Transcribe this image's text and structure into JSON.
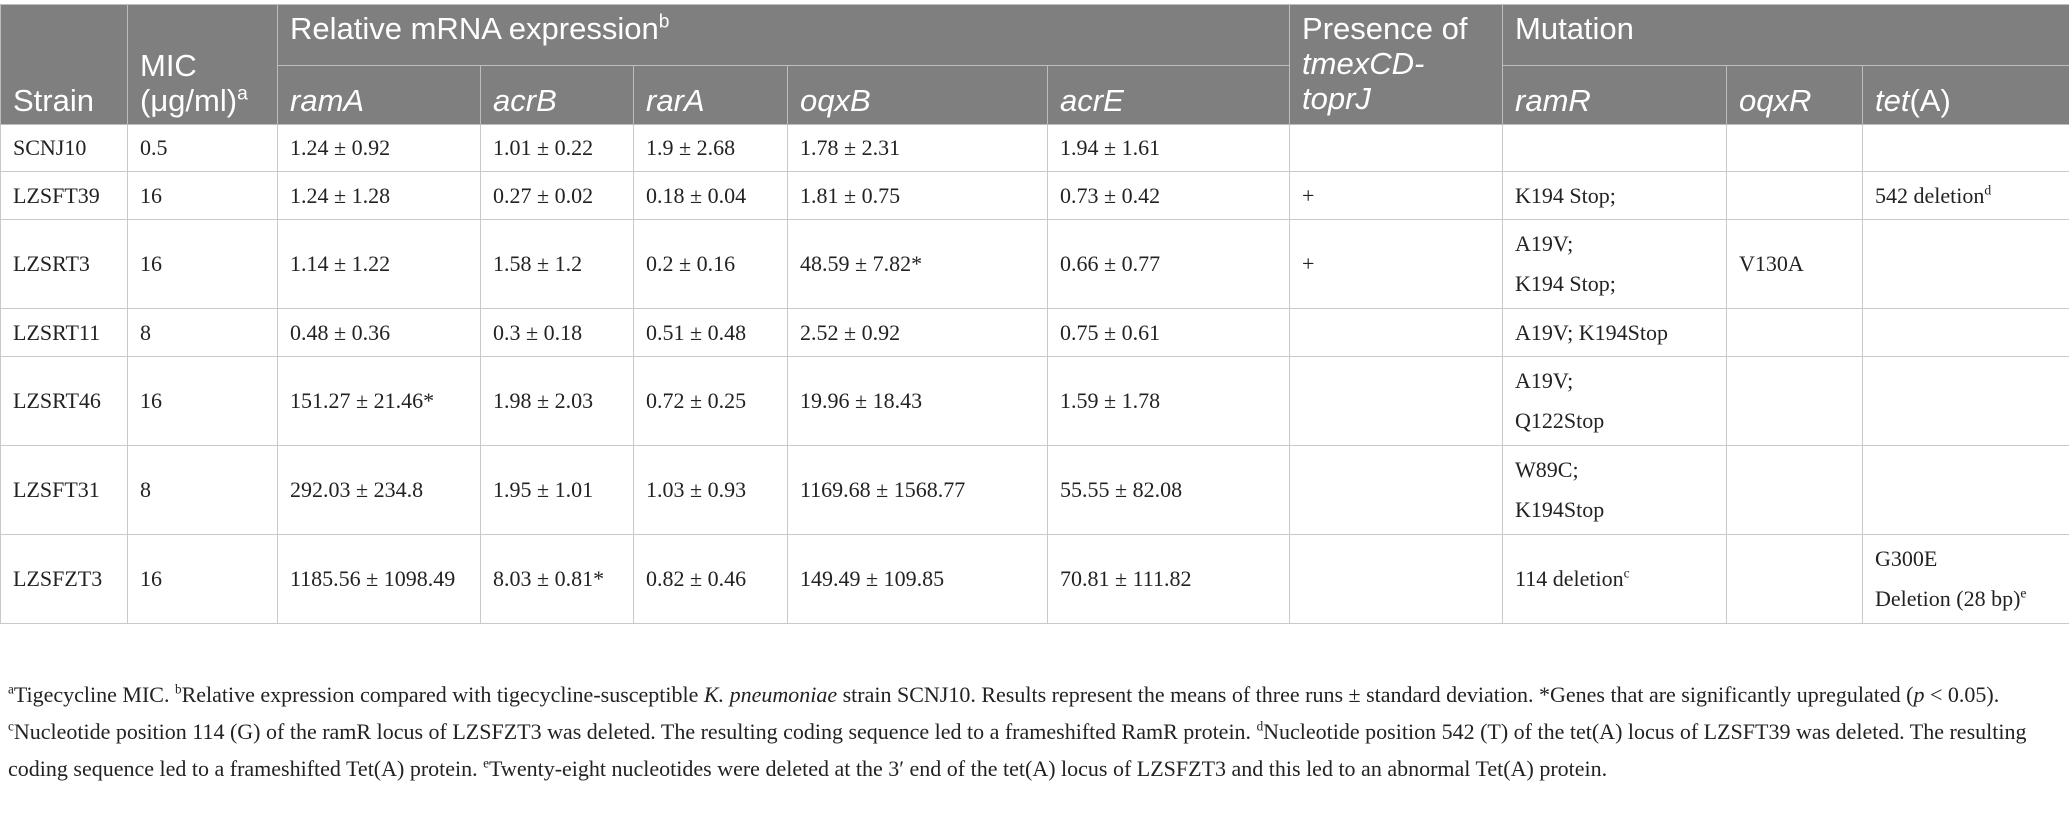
{
  "headers": {
    "strain": "Strain",
    "mic_line1": "MIC",
    "mic_line2": "(μg/ml)",
    "mic_sup": "a",
    "relative_group": "Relative mRNA expression",
    "relative_sup": "b",
    "ramA": "ramA",
    "acrB": "acrB",
    "rarA": "rarA",
    "oqxB": "oqxB",
    "acrE": "acrE",
    "presence_line1": "Presence of",
    "presence_line2": "tmexCD-",
    "presence_line3": "toprJ",
    "mutation_group": "Mutation",
    "ramR": "ramR",
    "oqxR": "oqxR",
    "tetA_italic": "tet",
    "tetA_plain": "(A)"
  },
  "rows": [
    {
      "strain": "SCNJ10",
      "mic": "0.5",
      "ramA": "1.24 ± 0.92",
      "acrB": "1.01 ± 0.22",
      "rarA": "1.9 ± 2.68",
      "oqxB": "1.78 ± 2.31",
      "acrE": "1.94 ± 1.61",
      "presence": "",
      "ramR1": "",
      "ramR2": "",
      "oqxR": "",
      "tetA1": "",
      "tetA2": ""
    },
    {
      "strain": "LZSFT39",
      "mic": "16",
      "ramA": "1.24 ± 1.28",
      "acrB": "0.27 ± 0.02",
      "rarA": "0.18 ± 0.04",
      "oqxB": "1.81 ± 0.75",
      "acrE": "0.73 ± 0.42",
      "presence": "+",
      "ramR1": "K194 Stop;",
      "ramR2": "",
      "oqxR": "",
      "tetA1": "542 deletion",
      "tetA1_sup": "d",
      "tetA2": ""
    },
    {
      "strain": "LZSRT3",
      "mic": "16",
      "ramA": "1.14 ± 1.22",
      "acrB": "1.58 ± 1.2",
      "rarA": "0.2 ± 0.16",
      "oqxB": "48.59 ± 7.82*",
      "acrE": "0.66 ± 0.77",
      "presence": "+",
      "ramR1": "A19V;",
      "ramR2": "K194 Stop;",
      "oqxR": "V130A",
      "tetA1": "",
      "tetA2": ""
    },
    {
      "strain": "LZSRT11",
      "mic": "8",
      "ramA": "0.48 ± 0.36",
      "acrB": "0.3 ± 0.18",
      "rarA": "0.51 ± 0.48",
      "oqxB": "2.52 ± 0.92",
      "acrE": "0.75 ± 0.61",
      "presence": "",
      "ramR1": "A19V; K194Stop",
      "ramR2": "",
      "oqxR": "",
      "tetA1": "",
      "tetA2": ""
    },
    {
      "strain": "LZSRT46",
      "mic": "16",
      "ramA": "151.27 ± 21.46*",
      "acrB": "1.98 ± 2.03",
      "rarA": "0.72 ± 0.25",
      "oqxB": "19.96 ± 18.43",
      "acrE": "1.59 ± 1.78",
      "presence": "",
      "ramR1": "A19V;",
      "ramR2": "Q122Stop",
      "oqxR": "",
      "tetA1": "",
      "tetA2": ""
    },
    {
      "strain": "LZSFT31",
      "mic": "8",
      "ramA": "292.03 ± 234.8",
      "acrB": "1.95 ± 1.01",
      "rarA": "1.03 ± 0.93",
      "oqxB": "1169.68 ± 1568.77",
      "acrE": "55.55 ± 82.08",
      "presence": "",
      "ramR1": "W89C;",
      "ramR2": "K194Stop",
      "oqxR": "",
      "tetA1": "",
      "tetA2": ""
    },
    {
      "strain": "LZSFZT3",
      "mic": "16",
      "ramA": "1185.56 ± 1098.49",
      "acrB": "8.03 ± 0.81*",
      "rarA": "0.82 ± 0.46",
      "oqxB": "149.49 ± 109.85",
      "acrE": "70.81 ± 111.82",
      "presence": "",
      "ramR1": "114 deletion",
      "ramR1_sup": "c",
      "ramR2": "",
      "oqxR": "",
      "tetA1": "G300E",
      "tetA2": "Deletion (28 bp)",
      "tetA2_sup": "e"
    }
  ],
  "footnotes": {
    "a_sup": "a",
    "a_text": "Tigecycline MIC. ",
    "b_sup": "b",
    "b_text1": "Relative expression compared with tigecycline-susceptible ",
    "b_species": "K. pneumoniae",
    "b_text2": " strain SCNJ10. Results represent the means of three runs ± standard deviation. *Genes that are significantly upregulated (",
    "b_p": "p",
    "b_text3": " < 0.05). ",
    "c_sup": "c",
    "c_text": "Nucleotide position 114 (G) of the ramR locus of LZSFZT3 was deleted. The resulting coding sequence led to a frameshifted RamR protein. ",
    "d_sup": "d",
    "d_text": "Nucleotide position 542 (T) of the tet(A) locus of LZSFT39 was deleted. The resulting coding sequence led to a frameshifted Tet(A) protein. ",
    "e_sup": "e",
    "e_text": "Twenty-eight nucleotides were deleted at the 3′ end of the tet(A) locus of LZSFZT3 and this led to an abnormal Tet(A) protein."
  }
}
